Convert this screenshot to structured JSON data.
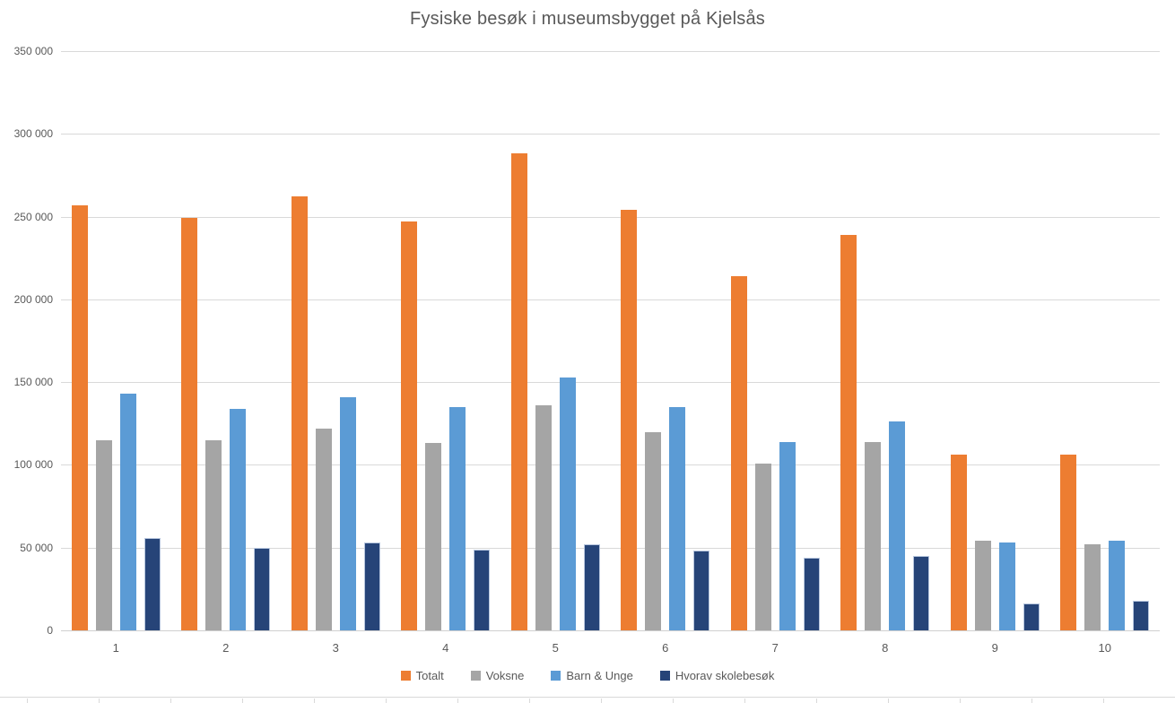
{
  "title": "Fysiske besøk i museumsbygget på Kjelsås",
  "colors": {
    "title_text": "#595959",
    "axis_text": "#595959",
    "gridline": "#d9d9d9",
    "background": "#ffffff",
    "series_totalt": "#ED7D31",
    "series_voksne": "#A5A5A5",
    "series_barn_unge": "#5B9BD5",
    "series_skolebesok": "#264478"
  },
  "chart_data": {
    "type": "bar",
    "title": "Fysiske besøk i museumsbygget på Kjelsås",
    "xlabel": "",
    "ylabel": "",
    "categories": [
      "1",
      "2",
      "3",
      "4",
      "5",
      "6",
      "7",
      "8",
      "9",
      "10"
    ],
    "series": [
      {
        "name": "Totalt",
        "color": "#ED7D31",
        "values": [
          257000,
          249000,
          262000,
          247000,
          288000,
          254000,
          214000,
          239000,
          106000,
          106000
        ]
      },
      {
        "name": "Voksne",
        "color": "#A5A5A5",
        "values": [
          115000,
          115000,
          122000,
          113000,
          136000,
          120000,
          101000,
          114000,
          54000,
          52000
        ]
      },
      {
        "name": "Barn & Unge",
        "color": "#5B9BD5",
        "values": [
          143000,
          134000,
          141000,
          135000,
          153000,
          135000,
          114000,
          126000,
          53000,
          54000
        ]
      },
      {
        "name": "Hvorav skolebesøk",
        "color": "#264478",
        "bordered": true,
        "values": [
          56000,
          50000,
          53000,
          49000,
          52000,
          48000,
          44000,
          45000,
          16000,
          18000
        ]
      }
    ],
    "ylim": [
      0,
      350000
    ],
    "ytick_step": 50000,
    "ytick_labels": [
      "0",
      "50 000",
      "100 000",
      "150 000",
      "200 000",
      "250 000",
      "300 000",
      "350 000"
    ],
    "grid": true,
    "legend_position": "bottom"
  }
}
